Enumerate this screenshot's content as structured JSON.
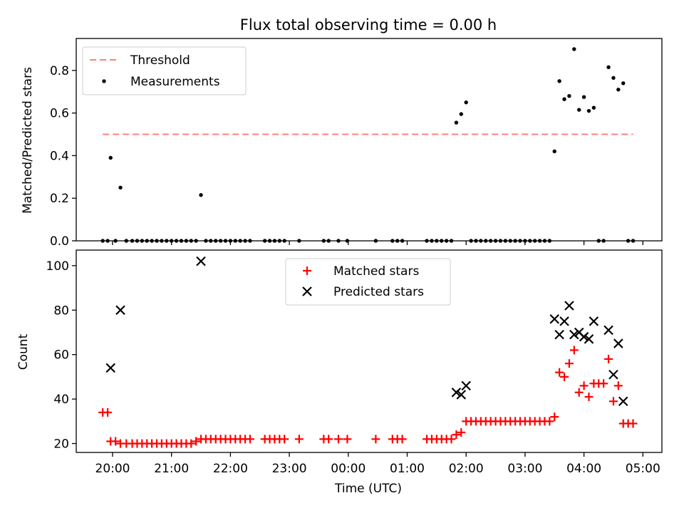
{
  "chart_data": {
    "title": "Flux total observing time = 0.00 h",
    "xlabel": "Time (UTC)",
    "x_ticks": [
      "20:00",
      "21:00",
      "22:00",
      "23:00",
      "00:00",
      "01:00",
      "02:00",
      "03:00",
      "04:00",
      "05:00"
    ],
    "top": {
      "type": "scatter",
      "ylabel": "Matched/Predicted stars",
      "ylim": [
        0,
        0.95
      ],
      "y_ticks": [
        "0.0",
        "0.2",
        "0.4",
        "0.6",
        "0.8"
      ],
      "legend": {
        "placement": "top-left"
      },
      "threshold": {
        "name": "Threshold",
        "value": 0.5,
        "color": "#ff7f7f"
      },
      "series": [
        {
          "name": "Measurements",
          "color": "#000000",
          "points": [
            [
              "19:50",
              0
            ],
            [
              "19:55",
              0
            ],
            [
              "19:58",
              0.39
            ],
            [
              "20:03",
              0
            ],
            [
              "20:08",
              0.25
            ],
            [
              "20:14",
              0
            ],
            [
              "20:20",
              0
            ],
            [
              "20:25",
              0
            ],
            [
              "20:30",
              0
            ],
            [
              "20:35",
              0
            ],
            [
              "20:40",
              0
            ],
            [
              "20:45",
              0
            ],
            [
              "20:50",
              0
            ],
            [
              "20:55",
              0
            ],
            [
              "21:00",
              0
            ],
            [
              "21:05",
              0
            ],
            [
              "21:10",
              0
            ],
            [
              "21:15",
              0
            ],
            [
              "21:20",
              0
            ],
            [
              "21:25",
              0
            ],
            [
              "21:30",
              0.215
            ],
            [
              "21:35",
              0
            ],
            [
              "21:40",
              0
            ],
            [
              "21:45",
              0
            ],
            [
              "21:50",
              0
            ],
            [
              "21:55",
              0
            ],
            [
              "22:00",
              0
            ],
            [
              "22:05",
              0
            ],
            [
              "22:10",
              0
            ],
            [
              "22:15",
              0
            ],
            [
              "22:20",
              0
            ],
            [
              "22:35",
              0
            ],
            [
              "22:40",
              0
            ],
            [
              "22:45",
              0
            ],
            [
              "22:50",
              0
            ],
            [
              "22:55",
              0
            ],
            [
              "23:10",
              0
            ],
            [
              "23:35",
              0
            ],
            [
              "23:40",
              0
            ],
            [
              "23:50",
              0
            ],
            [
              "23:59",
              0
            ],
            [
              "00:28",
              0
            ],
            [
              "00:45",
              0
            ],
            [
              "00:50",
              0
            ],
            [
              "00:55",
              0
            ],
            [
              "01:20",
              0
            ],
            [
              "01:25",
              0
            ],
            [
              "01:30",
              0
            ],
            [
              "01:35",
              0
            ],
            [
              "01:40",
              0
            ],
            [
              "01:45",
              0
            ],
            [
              "01:50",
              0.555
            ],
            [
              "01:55",
              0.595
            ],
            [
              "02:00",
              0.65
            ],
            [
              "02:05",
              0
            ],
            [
              "02:10",
              0
            ],
            [
              "02:15",
              0
            ],
            [
              "02:20",
              0
            ],
            [
              "02:25",
              0
            ],
            [
              "02:30",
              0
            ],
            [
              "02:35",
              0
            ],
            [
              "02:40",
              0
            ],
            [
              "02:45",
              0
            ],
            [
              "02:50",
              0
            ],
            [
              "02:55",
              0
            ],
            [
              "03:00",
              0
            ],
            [
              "03:05",
              0
            ],
            [
              "03:10",
              0
            ],
            [
              "03:15",
              0
            ],
            [
              "03:20",
              0
            ],
            [
              "03:25",
              0
            ],
            [
              "03:30",
              0.42
            ],
            [
              "03:35",
              0.75
            ],
            [
              "03:40",
              0.665
            ],
            [
              "03:45",
              0.68
            ],
            [
              "03:50",
              0.9
            ],
            [
              "03:55",
              0.615
            ],
            [
              "04:00",
              0.675
            ],
            [
              "04:05",
              0.61
            ],
            [
              "04:10",
              0.625
            ],
            [
              "04:15",
              0
            ],
            [
              "04:20",
              0
            ],
            [
              "04:25",
              0.815
            ],
            [
              "04:30",
              0.765
            ],
            [
              "04:35",
              0.71
            ],
            [
              "04:40",
              0.74
            ],
            [
              "04:45",
              0
            ],
            [
              "04:50",
              0
            ]
          ]
        }
      ]
    },
    "bottom": {
      "type": "scatter",
      "ylabel": "Count",
      "ylim": [
        16,
        107
      ],
      "y_ticks": [
        "20",
        "40",
        "60",
        "80",
        "100"
      ],
      "legend": {
        "placement": "top-center"
      },
      "series": [
        {
          "name": "Matched stars",
          "marker": "plus",
          "color": "#ff0000",
          "points": [
            [
              "19:50",
              34
            ],
            [
              "19:55",
              34
            ],
            [
              "19:58",
              21
            ],
            [
              "20:03",
              21
            ],
            [
              "20:08",
              20
            ],
            [
              "20:14",
              20
            ],
            [
              "20:20",
              20
            ],
            [
              "20:25",
              20
            ],
            [
              "20:30",
              20
            ],
            [
              "20:35",
              20
            ],
            [
              "20:40",
              20
            ],
            [
              "20:45",
              20
            ],
            [
              "20:50",
              20
            ],
            [
              "20:55",
              20
            ],
            [
              "21:00",
              20
            ],
            [
              "21:05",
              20
            ],
            [
              "21:10",
              20
            ],
            [
              "21:15",
              20
            ],
            [
              "21:20",
              20
            ],
            [
              "21:25",
              21
            ],
            [
              "21:30",
              22
            ],
            [
              "21:35",
              22
            ],
            [
              "21:40",
              22
            ],
            [
              "21:45",
              22
            ],
            [
              "21:50",
              22
            ],
            [
              "21:55",
              22
            ],
            [
              "22:00",
              22
            ],
            [
              "22:05",
              22
            ],
            [
              "22:10",
              22
            ],
            [
              "22:15",
              22
            ],
            [
              "22:20",
              22
            ],
            [
              "22:35",
              22
            ],
            [
              "22:40",
              22
            ],
            [
              "22:45",
              22
            ],
            [
              "22:50",
              22
            ],
            [
              "22:55",
              22
            ],
            [
              "23:10",
              22
            ],
            [
              "23:35",
              22
            ],
            [
              "23:40",
              22
            ],
            [
              "23:50",
              22
            ],
            [
              "23:59",
              22
            ],
            [
              "00:28",
              22
            ],
            [
              "00:45",
              22
            ],
            [
              "00:50",
              22
            ],
            [
              "00:55",
              22
            ],
            [
              "01:20",
              22
            ],
            [
              "01:25",
              22
            ],
            [
              "01:30",
              22
            ],
            [
              "01:35",
              22
            ],
            [
              "01:40",
              22
            ],
            [
              "01:45",
              22
            ],
            [
              "01:50",
              24
            ],
            [
              "01:55",
              25
            ],
            [
              "02:00",
              30
            ],
            [
              "02:05",
              30
            ],
            [
              "02:10",
              30
            ],
            [
              "02:15",
              30
            ],
            [
              "02:20",
              30
            ],
            [
              "02:25",
              30
            ],
            [
              "02:30",
              30
            ],
            [
              "02:35",
              30
            ],
            [
              "02:40",
              30
            ],
            [
              "02:45",
              30
            ],
            [
              "02:50",
              30
            ],
            [
              "02:55",
              30
            ],
            [
              "03:00",
              30
            ],
            [
              "03:05",
              30
            ],
            [
              "03:10",
              30
            ],
            [
              "03:15",
              30
            ],
            [
              "03:20",
              30
            ],
            [
              "03:25",
              30
            ],
            [
              "03:30",
              32
            ],
            [
              "03:35",
              52
            ],
            [
              "03:40",
              50
            ],
            [
              "03:45",
              56
            ],
            [
              "03:50",
              62
            ],
            [
              "03:55",
              43
            ],
            [
              "04:00",
              46
            ],
            [
              "04:05",
              41
            ],
            [
              "04:10",
              47
            ],
            [
              "04:15",
              47
            ],
            [
              "04:20",
              47
            ],
            [
              "04:25",
              58
            ],
            [
              "04:30",
              39
            ],
            [
              "04:35",
              46
            ],
            [
              "04:40",
              29
            ],
            [
              "04:45",
              29
            ],
            [
              "04:50",
              29
            ]
          ]
        },
        {
          "name": "Predicted stars",
          "marker": "x",
          "color": "#000000",
          "points": [
            [
              "19:58",
              54
            ],
            [
              "20:08",
              80
            ],
            [
              "21:30",
              102
            ],
            [
              "01:50",
              43
            ],
            [
              "01:55",
              42
            ],
            [
              "02:00",
              46
            ],
            [
              "03:30",
              76
            ],
            [
              "03:35",
              69
            ],
            [
              "03:40",
              75
            ],
            [
              "03:45",
              82
            ],
            [
              "03:50",
              69
            ],
            [
              "03:55",
              70
            ],
            [
              "04:00",
              68
            ],
            [
              "04:05",
              67
            ],
            [
              "04:10",
              75
            ],
            [
              "04:25",
              71
            ],
            [
              "04:30",
              51
            ],
            [
              "04:35",
              65
            ],
            [
              "04:40",
              39
            ]
          ]
        }
      ]
    }
  }
}
